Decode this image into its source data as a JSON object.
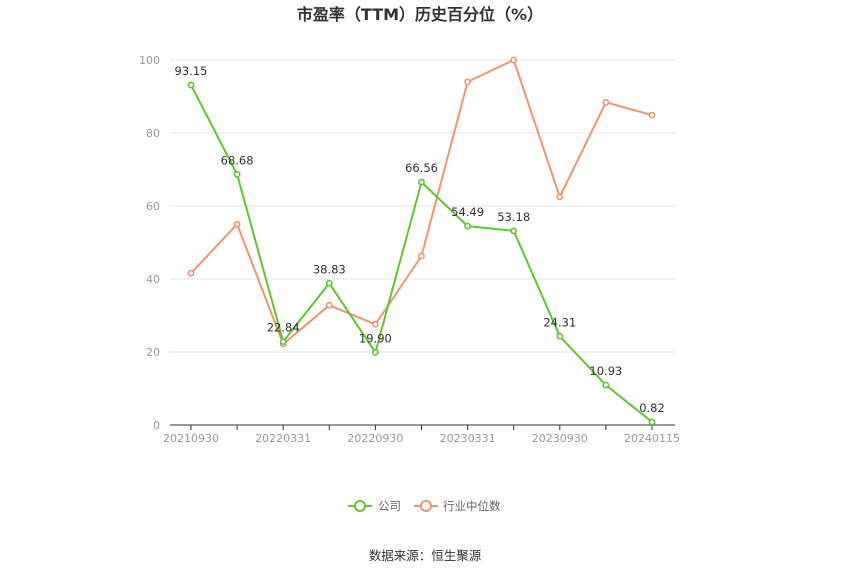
{
  "chart_data": {
    "type": "line",
    "title": "市盈率（TTM）历史百分位（%）",
    "x": [
      "20210930",
      "20211231",
      "20220331",
      "20220630",
      "20220930",
      "20221231",
      "20230331",
      "20230630",
      "20230930",
      "20231231",
      "20240115"
    ],
    "x_tick_labels": [
      "20210930",
      "20220331",
      "20220930",
      "20230331",
      "20230930",
      "20240115"
    ],
    "ylim": [
      0,
      100
    ],
    "y_ticks": [
      0,
      20,
      40,
      60,
      80,
      100
    ],
    "grid": true,
    "legend_position": "bottom",
    "series": [
      {
        "name": "公司",
        "color": "#5cc72e",
        "values": [
          93.15,
          68.68,
          22.84,
          38.83,
          19.9,
          66.56,
          54.49,
          53.18,
          24.31,
          10.93,
          0.82
        ],
        "labels": [
          "93.15",
          "68.68",
          "22.84",
          "38.83",
          "19.90",
          "66.56",
          "54.49",
          "53.18",
          "24.31",
          "10.93",
          "0.82"
        ]
      },
      {
        "name": "行业中位数",
        "color": "#f2956a",
        "values": [
          41.6,
          55,
          22.2,
          32.8,
          27.6,
          46.3,
          94,
          100,
          62.5,
          88.4,
          84.9
        ]
      }
    ]
  },
  "footer": {
    "source": "数据来源：恒生聚源"
  }
}
